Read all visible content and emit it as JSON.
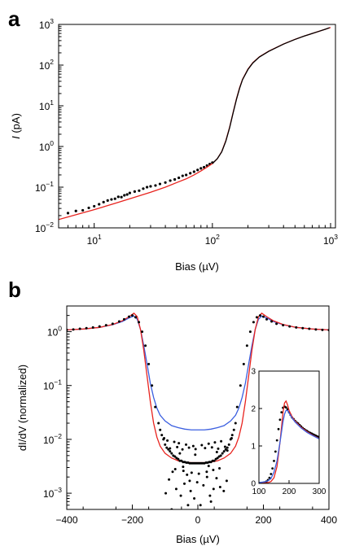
{
  "chart_data": [
    {
      "panel": "a",
      "type": "scatter",
      "xscale": "log",
      "yscale": "log",
      "xlabel": "Bias (µV)",
      "ylabel_italic": "I",
      "ylabel_rest": " (pA)",
      "xlim": [
        5,
        1100
      ],
      "ylim": [
        0.01,
        1000
      ],
      "x_ticks": [
        {
          "base": "10",
          "exp": "1",
          "value": 10
        },
        {
          "base": "10",
          "exp": "2",
          "value": 100
        },
        {
          "base": "10",
          "exp": "3",
          "value": 1000
        }
      ],
      "y_ticks": [
        {
          "base": "10",
          "exp": "−2",
          "value": 0.01
        },
        {
          "base": "10",
          "exp": "−1",
          "value": 0.1
        },
        {
          "base": "10",
          "exp": "0",
          "value": 1
        },
        {
          "base": "10",
          "exp": "1",
          "value": 10
        },
        {
          "base": "10",
          "exp": "2",
          "value": 100
        },
        {
          "base": "10",
          "exp": "3",
          "value": 1000
        }
      ],
      "series": [
        {
          "kind": "points",
          "color": "#000000",
          "x": [
            6,
            7,
            8,
            9,
            10,
            11,
            12,
            13,
            14,
            15,
            16,
            17,
            18,
            19,
            20,
            22,
            24,
            26,
            28,
            30,
            33,
            36,
            40,
            44,
            48,
            52,
            56,
            60,
            65,
            70,
            75,
            80,
            85,
            90,
            95,
            100
          ],
          "y": [
            0.023,
            0.026,
            0.027,
            0.031,
            0.034,
            0.038,
            0.043,
            0.047,
            0.05,
            0.052,
            0.058,
            0.057,
            0.063,
            0.066,
            0.072,
            0.078,
            0.082,
            0.092,
            0.1,
            0.105,
            0.11,
            0.12,
            0.13,
            0.145,
            0.155,
            0.17,
            0.19,
            0.2,
            0.22,
            0.24,
            0.265,
            0.29,
            0.31,
            0.34,
            0.37,
            0.4
          ]
        },
        {
          "kind": "line",
          "color": "#e8231e",
          "x": [
            5,
            7,
            10,
            15,
            20,
            30,
            40,
            50,
            60,
            70,
            80,
            90,
            100,
            110,
            120,
            130,
            140,
            150,
            160,
            170,
            180,
            200,
            220,
            250,
            300,
            400,
            500,
            600,
            700,
            800,
            900,
            1000
          ],
          "y": [
            0.016,
            0.021,
            0.028,
            0.04,
            0.052,
            0.075,
            0.1,
            0.13,
            0.16,
            0.2,
            0.25,
            0.31,
            0.38,
            0.5,
            0.75,
            1.4,
            3.0,
            7.0,
            15,
            28,
            45,
            80,
            115,
            160,
            220,
            330,
            430,
            520,
            600,
            680,
            760,
            840
          ]
        },
        {
          "kind": "line",
          "color": "#000000",
          "x": [
            100,
            110,
            120,
            130,
            140,
            150,
            160,
            170,
            180,
            200,
            220,
            250,
            300,
            400,
            500,
            600,
            700,
            800,
            900,
            980
          ],
          "y": [
            0.38,
            0.5,
            0.74,
            1.35,
            2.9,
            6.8,
            14.5,
            27,
            44,
            78,
            113,
            158,
            218,
            328,
            428,
            518,
            598,
            678,
            758,
            830
          ]
        }
      ]
    },
    {
      "panel": "b",
      "type": "scatter",
      "xscale": "linear",
      "yscale": "log",
      "xlabel": "Bias (µV)",
      "ylabel": "dI/dV (normalized)",
      "xlim": [
        -400,
        400
      ],
      "ylim": [
        0.0005,
        3
      ],
      "x_ticks": [
        "−400",
        "−200",
        "0",
        "200",
        "400"
      ],
      "x_tick_values": [
        -400,
        -200,
        0,
        200,
        400
      ],
      "y_ticks": [
        {
          "base": "10",
          "exp": "0",
          "value": 1
        },
        {
          "base": "10",
          "exp": "−1",
          "value": 0.1
        },
        {
          "base": "10",
          "exp": "−2",
          "value": 0.01
        },
        {
          "base": "10",
          "exp": "−3",
          "value": 0.001
        }
      ],
      "series": [
        {
          "kind": "line",
          "color": "#3b5fe0",
          "x": [
            -400,
            -350,
            -300,
            -260,
            -230,
            -210,
            -195,
            -185,
            -175,
            -165,
            -155,
            -145,
            -135,
            -125,
            -115,
            -100,
            -80,
            -60,
            -40,
            -20,
            0,
            20,
            40,
            60,
            80,
            100,
            115,
            125,
            135,
            145,
            155,
            165,
            175,
            185,
            195,
            210,
            230,
            260,
            300,
            350,
            400
          ],
          "y": [
            1.08,
            1.12,
            1.2,
            1.35,
            1.55,
            1.8,
            1.95,
            1.7,
            1.1,
            0.55,
            0.25,
            0.11,
            0.06,
            0.038,
            0.028,
            0.022,
            0.018,
            0.0165,
            0.0155,
            0.015,
            0.015,
            0.015,
            0.0155,
            0.0165,
            0.018,
            0.022,
            0.028,
            0.038,
            0.06,
            0.11,
            0.25,
            0.55,
            1.1,
            1.7,
            1.95,
            1.8,
            1.55,
            1.35,
            1.2,
            1.12,
            1.08
          ]
        },
        {
          "kind": "line",
          "color": "#e8231e",
          "x": [
            -400,
            -350,
            -300,
            -260,
            -230,
            -210,
            -195,
            -185,
            -175,
            -165,
            -155,
            -145,
            -135,
            -125,
            -115,
            -100,
            -80,
            -60,
            -40,
            -20,
            0,
            20,
            40,
            60,
            80,
            100,
            115,
            125,
            135,
            145,
            155,
            165,
            175,
            185,
            195,
            210,
            230,
            260,
            300,
            350,
            400
          ],
          "y": [
            1.08,
            1.12,
            1.2,
            1.36,
            1.6,
            1.9,
            2.2,
            1.9,
            1.1,
            0.45,
            0.15,
            0.05,
            0.02,
            0.011,
            0.0075,
            0.0055,
            0.0045,
            0.004,
            0.0038,
            0.0037,
            0.0037,
            0.0037,
            0.0038,
            0.004,
            0.0045,
            0.0055,
            0.0075,
            0.011,
            0.02,
            0.05,
            0.15,
            0.45,
            1.1,
            1.9,
            2.2,
            1.9,
            1.6,
            1.36,
            1.2,
            1.12,
            1.08
          ]
        },
        {
          "kind": "points",
          "color": "#000000",
          "x": [
            -400,
            -380,
            -360,
            -340,
            -320,
            -300,
            -280,
            -260,
            -240,
            -225,
            -210,
            -200,
            -190,
            -180,
            -170,
            -160,
            -150,
            -140,
            -130,
            -120,
            -115,
            -110,
            -105,
            -100,
            -95,
            -90,
            -85,
            -80,
            -75,
            -70,
            -65,
            -60,
            -55,
            -50,
            -45,
            -40,
            -35,
            -30,
            -25,
            -20,
            -15,
            -10,
            -5,
            0,
            5,
            10,
            15,
            20,
            25,
            30,
            35,
            40,
            45,
            50,
            55,
            60,
            65,
            70,
            75,
            80,
            85,
            90,
            95,
            100,
            105,
            110,
            115,
            120,
            130,
            140,
            150,
            160,
            170,
            180,
            190,
            200,
            210,
            225,
            240,
            260,
            280,
            300,
            320,
            340,
            360,
            380,
            400,
            -98,
            -88,
            -77,
            -66,
            -52,
            -41,
            -33,
            -22,
            -11,
            -2,
            8,
            17,
            28,
            37,
            48,
            57,
            68,
            79,
            88,
            -93,
            -72,
            -58,
            -36,
            -14,
            12,
            33,
            52,
            71,
            -85,
            -63,
            -47,
            -27,
            -7,
            22,
            43,
            62,
            83,
            -69,
            -44,
            -19,
            3,
            27,
            47,
            66,
            -80,
            -30,
            40,
            -55,
            -8,
            58,
            90,
            -103,
            103,
            -45,
            33,
            -25
          ],
          "y": [
            1.08,
            1.1,
            1.13,
            1.16,
            1.2,
            1.25,
            1.32,
            1.4,
            1.55,
            1.7,
            1.9,
            2.0,
            1.85,
            1.5,
            1.0,
            0.55,
            0.25,
            0.1,
            0.04,
            0.02,
            0.015,
            0.012,
            0.01,
            0.008,
            0.007,
            0.0065,
            0.006,
            0.0055,
            0.005,
            0.0048,
            0.0045,
            0.0043,
            0.004,
            0.004,
            0.0038,
            0.0038,
            0.0037,
            0.0037,
            0.0036,
            0.0036,
            0.0036,
            0.0036,
            0.0036,
            0.0036,
            0.0036,
            0.0036,
            0.0036,
            0.0036,
            0.0037,
            0.0037,
            0.0038,
            0.0038,
            0.004,
            0.004,
            0.0043,
            0.0045,
            0.0048,
            0.005,
            0.0055,
            0.006,
            0.0065,
            0.007,
            0.008,
            0.01,
            0.012,
            0.015,
            0.02,
            0.04,
            0.1,
            0.25,
            0.55,
            1.0,
            1.5,
            1.85,
            2.0,
            1.9,
            1.7,
            1.55,
            1.4,
            1.32,
            1.25,
            1.2,
            1.16,
            1.13,
            1.1,
            1.08,
            1.07,
            0.001,
            0.0018,
            0.0025,
            0.0012,
            0.0009,
            0.0015,
            0.0022,
            0.0011,
            0.0008,
            0.0016,
            0.0006,
            0.0014,
            0.002,
            0.0009,
            0.0012,
            0.0019,
            0.0013,
            0.0011,
            0.0017,
            0.0095,
            0.009,
            0.0085,
            0.008,
            0.0075,
            0.0078,
            0.0083,
            0.0088,
            0.0092,
            0.0068,
            0.0072,
            0.0065,
            0.007,
            0.0066,
            0.0069,
            0.0071,
            0.0067,
            0.0073,
            0.0028,
            0.0026,
            0.0024,
            0.0023,
            0.0025,
            0.0027,
            0.0029,
            0.0005,
            0.0006,
            0.0007,
            0.0055,
            0.0052,
            0.0058,
            0.0062,
            0.0105,
            0.0105,
            0.0031,
            0.0032,
            0.0017
          ]
        }
      ],
      "inset": {
        "type": "scatter",
        "xlim": [
          100,
          300
        ],
        "ylim": [
          0,
          3
        ],
        "x_ticks": [
          "100",
          "200",
          "300"
        ],
        "x_tick_values": [
          100,
          200,
          300
        ],
        "y_ticks": [
          "0",
          "1",
          "2",
          "3"
        ],
        "y_tick_values": [
          0,
          1,
          2,
          3
        ],
        "series": [
          {
            "kind": "points",
            "color": "#000000",
            "x": [
              100,
              105,
              110,
              115,
              120,
              125,
              130,
              135,
              140,
              145,
              150,
              155,
              160,
              165,
              170,
              175,
              180,
              185,
              190,
              195,
              200,
              205,
              210,
              215,
              220,
              225,
              230,
              235,
              240,
              245,
              250,
              255,
              260,
              265,
              270,
              275,
              280,
              285,
              290,
              295,
              300
            ],
            "y": [
              0.008,
              0.01,
              0.015,
              0.02,
              0.03,
              0.05,
              0.09,
              0.15,
              0.25,
              0.4,
              0.6,
              0.85,
              1.15,
              1.45,
              1.7,
              1.9,
              2.02,
              2.05,
              2.03,
              1.98,
              1.9,
              1.83,
              1.76,
              1.72,
              1.67,
              1.63,
              1.6,
              1.56,
              1.52,
              1.48,
              1.45,
              1.42,
              1.4,
              1.37,
              1.35,
              1.33,
              1.31,
              1.29,
              1.27,
              1.25,
              1.23
            ]
          },
          {
            "kind": "line",
            "color": "#e8231e",
            "x": [
              100,
              120,
              130,
              140,
              150,
              160,
              170,
              180,
              185,
              190,
              195,
              200,
              210,
              220,
              240,
              260,
              280,
              300
            ],
            "y": [
              0.005,
              0.01,
              0.02,
              0.05,
              0.15,
              0.45,
              1.1,
              1.9,
              2.15,
              2.2,
              2.1,
              1.95,
              1.78,
              1.66,
              1.5,
              1.38,
              1.28,
              1.2
            ]
          },
          {
            "kind": "line",
            "color": "#3b5fe0",
            "x": [
              100,
              120,
              130,
              140,
              150,
              160,
              170,
              180,
              185,
              190,
              195,
              200,
              210,
              220,
              240,
              260,
              280,
              300
            ],
            "y": [
              0.02,
              0.04,
              0.07,
              0.13,
              0.3,
              0.6,
              1.1,
              1.65,
              1.85,
              1.95,
              1.95,
              1.88,
              1.75,
              1.64,
              1.48,
              1.36,
              1.27,
              1.19
            ]
          }
        ]
      }
    }
  ]
}
